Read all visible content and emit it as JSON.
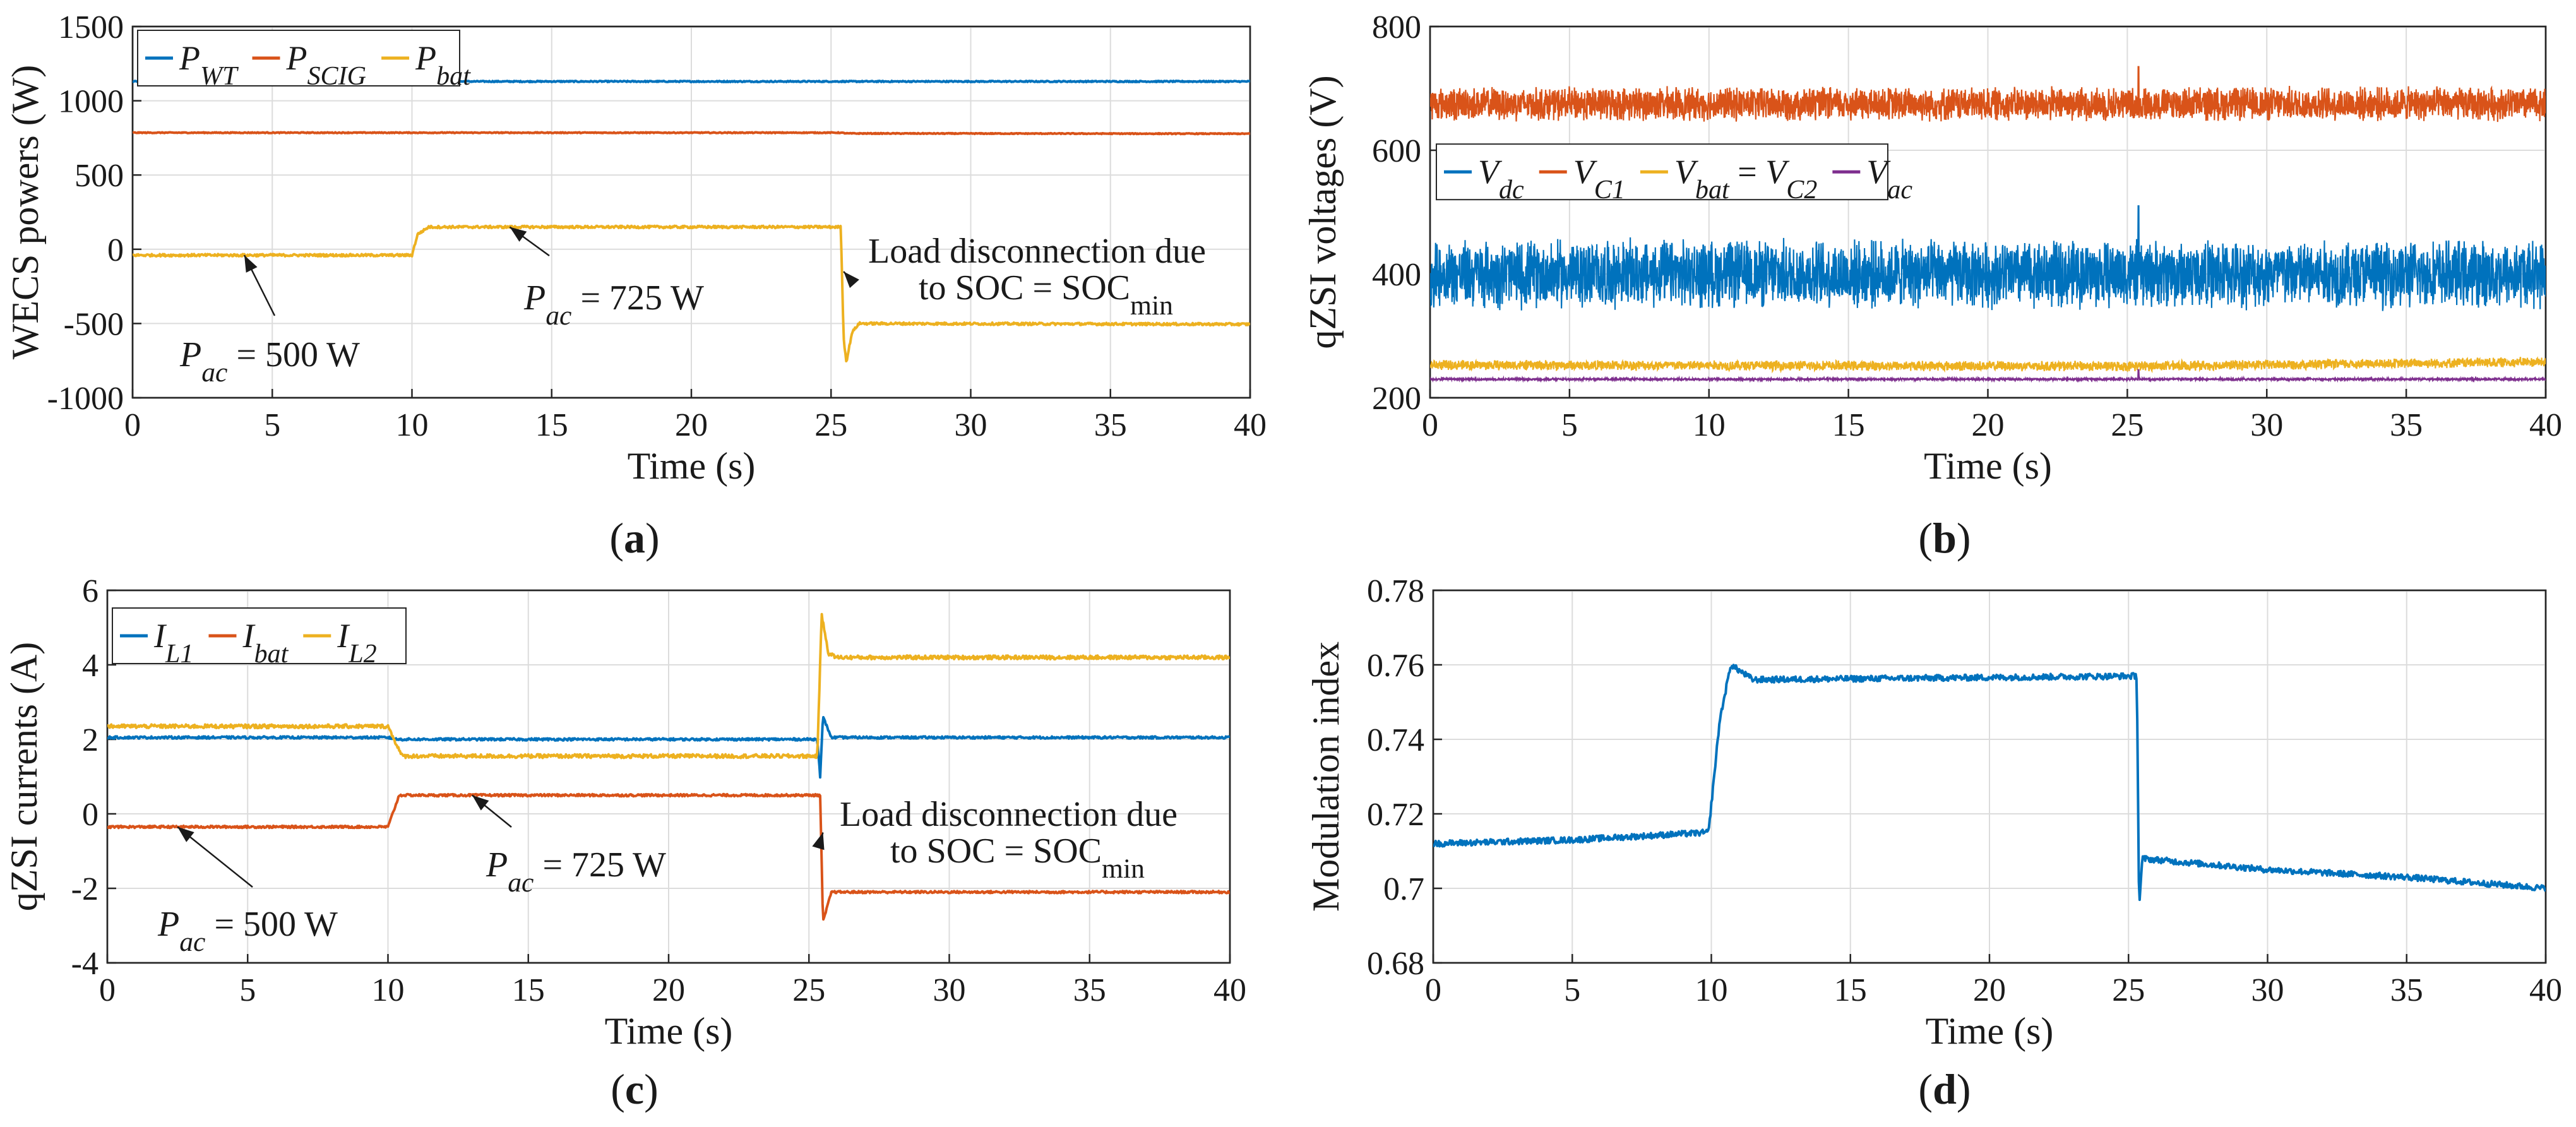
{
  "colors": {
    "blue": "#0072BD",
    "orange": "#D95319",
    "yellow": "#EDB120",
    "purple": "#7E2F8E"
  },
  "panel_labels": [
    "(a)",
    "(b)",
    "(c)",
    "(d)"
  ],
  "chart_data": [
    {
      "type": "line",
      "panel": "(a)",
      "xlabel": "Time (s)",
      "ylabel": "WECS powers (W)",
      "xlim": [
        0,
        40
      ],
      "ylim": [
        -1000,
        1500
      ],
      "xticks": [
        0,
        5,
        10,
        15,
        20,
        25,
        30,
        35,
        40
      ],
      "yticks": [
        -1000,
        -500,
        0,
        500,
        1000,
        1500
      ],
      "grid": true,
      "legend_position": "top-left",
      "series": [
        {
          "name": "P_WT",
          "color": "#0072BD",
          "noise": 4,
          "points": [
            [
              0,
              1130
            ],
            [
              40,
              1130
            ]
          ]
        },
        {
          "name": "P_SCIG",
          "color": "#D95319",
          "noise": 3,
          "points": [
            [
              0,
              785
            ],
            [
              25.3,
              785
            ],
            [
              25.6,
              780
            ],
            [
              40,
              778
            ]
          ]
        },
        {
          "name": "P_bat",
          "color": "#EDB120",
          "noise": 8,
          "points": [
            [
              0,
              -40
            ],
            [
              10,
              -40
            ],
            [
              10.2,
              100
            ],
            [
              10.6,
              150
            ],
            [
              25.35,
              150
            ],
            [
              25.45,
              -600
            ],
            [
              25.55,
              -760
            ],
            [
              25.75,
              -560
            ],
            [
              26.0,
              -500
            ],
            [
              40,
              -505
            ]
          ]
        }
      ],
      "annotations": [
        {
          "text": "P_ac = 500 W",
          "point": [
            4,
            -40
          ]
        },
        {
          "text": "P_ac = 725 W",
          "point": [
            13.5,
            150
          ]
        },
        {
          "text": "Load disconnection due to SOC = SOC_min",
          "point": [
            25.45,
            -150
          ]
        }
      ]
    },
    {
      "type": "line",
      "panel": "(b)",
      "xlabel": "Time (s)",
      "ylabel": "qZSI voltages (V)",
      "xlim": [
        0,
        40
      ],
      "ylim": [
        200,
        800
      ],
      "xticks": [
        0,
        5,
        10,
        15,
        20,
        25,
        30,
        35,
        40
      ],
      "yticks": [
        200,
        400,
        600,
        800
      ],
      "grid": true,
      "legend_position": "middle-left",
      "series": [
        {
          "name": "V_dc",
          "color": "#0072BD",
          "band": [
            340,
            460
          ],
          "points": [
            [
              0,
              400
            ],
            [
              40,
              400
            ]
          ],
          "spikes": [
            [
              25.4,
              510
            ]
          ]
        },
        {
          "name": "V_C1",
          "color": "#D95319",
          "band": [
            645,
            705
          ],
          "points": [
            [
              0,
              675
            ],
            [
              40,
              675
            ]
          ],
          "spikes": [
            [
              25.4,
              735
            ]
          ]
        },
        {
          "name": "V_bat = V_C2",
          "color": "#EDB120",
          "band": [
            244,
            262
          ],
          "points": [
            [
              0,
              253
            ],
            [
              25,
              251
            ],
            [
              40,
              258
            ]
          ]
        },
        {
          "name": "V_ac",
          "color": "#7E2F8E",
          "band": [
            228,
            232
          ],
          "points": [
            [
              0,
              230
            ],
            [
              40,
              230
            ]
          ],
          "spikes": [
            [
              25.4,
              245
            ]
          ]
        }
      ]
    },
    {
      "type": "line",
      "panel": "(c)",
      "xlabel": "Time (s)",
      "ylabel": "qZSI currents (A)",
      "xlim": [
        0,
        40
      ],
      "ylim": [
        -4,
        6
      ],
      "xticks": [
        0,
        5,
        10,
        15,
        20,
        25,
        30,
        35,
        40
      ],
      "yticks": [
        -4,
        -2,
        0,
        2,
        4,
        6
      ],
      "grid": true,
      "legend_position": "top-left",
      "series": [
        {
          "name": "I_L1",
          "color": "#0072BD",
          "noise": 0.03,
          "points": [
            [
              0,
              2.05
            ],
            [
              10,
              2.05
            ],
            [
              10.3,
              2.0
            ],
            [
              25.3,
              2.0
            ],
            [
              25.4,
              1.0
            ],
            [
              25.5,
              2.6
            ],
            [
              25.8,
              2.05
            ],
            [
              40,
              2.05
            ]
          ]
        },
        {
          "name": "I_bat",
          "color": "#D95319",
          "noise": 0.03,
          "points": [
            [
              0,
              -0.35
            ],
            [
              10,
              -0.35
            ],
            [
              10.4,
              0.5
            ],
            [
              25.4,
              0.5
            ],
            [
              25.5,
              -2.9
            ],
            [
              25.8,
              -2.1
            ],
            [
              40,
              -2.1
            ]
          ]
        },
        {
          "name": "I_L2",
          "color": "#EDB120",
          "noise": 0.05,
          "points": [
            [
              0,
              2.35
            ],
            [
              10,
              2.35
            ],
            [
              10.5,
              1.55
            ],
            [
              25.3,
              1.55
            ],
            [
              25.45,
              5.35
            ],
            [
              25.7,
              4.3
            ],
            [
              26.0,
              4.2
            ],
            [
              40,
              4.2
            ]
          ]
        }
      ],
      "annotations": [
        {
          "text": "P_ac = 500 W",
          "point": [
            2.5,
            -0.35
          ]
        },
        {
          "text": "P_ac = 725 W",
          "point": [
            13,
            0.5
          ]
        },
        {
          "text": "Load disconnection due to SOC = SOC_min",
          "point": [
            25.5,
            -0.5
          ]
        }
      ]
    },
    {
      "type": "line",
      "panel": "(d)",
      "xlabel": "Time (s)",
      "ylabel": "Modulation index",
      "xlim": [
        0,
        40
      ],
      "ylim": [
        0.68,
        0.78
      ],
      "xticks": [
        0,
        5,
        10,
        15,
        20,
        25,
        30,
        35,
        40
      ],
      "yticks": [
        0.68,
        0.7,
        0.72,
        0.74,
        0.76,
        0.78
      ],
      "grid": true,
      "series": [
        {
          "name": "",
          "color": "#0072BD",
          "noise": 0.0008,
          "points": [
            [
              0,
              0.712
            ],
            [
              5,
              0.713
            ],
            [
              9.9,
              0.715
            ],
            [
              10.3,
              0.745
            ],
            [
              10.7,
              0.76
            ],
            [
              11.5,
              0.756
            ],
            [
              25.3,
              0.757
            ],
            [
              25.38,
              0.695
            ],
            [
              25.5,
              0.708
            ],
            [
              27,
              0.707
            ],
            [
              30,
              0.705
            ],
            [
              35,
              0.703
            ],
            [
              40,
              0.7
            ]
          ]
        }
      ]
    }
  ]
}
